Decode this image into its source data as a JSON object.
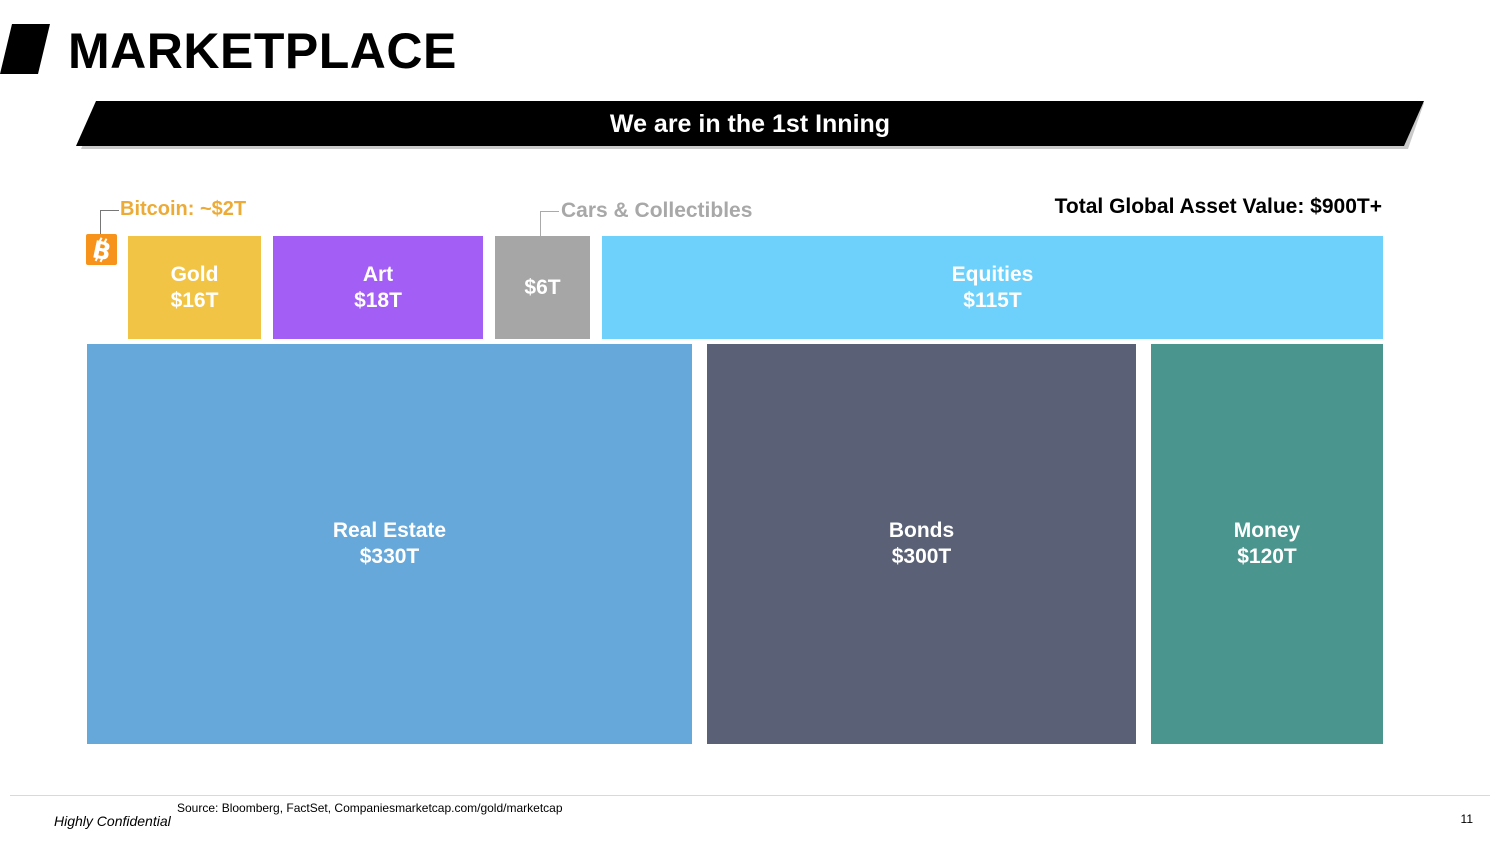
{
  "slide": {
    "title": "MARKETPLACE",
    "banner": "We are in the 1st Inning",
    "total_label": "Total Global Asset Value: $900T+",
    "source": "Source: Bloomberg, FactSet, Companiesmarketcap.com/gold/marketcap",
    "confidential": "Highly Confidential",
    "page_number": "11"
  },
  "callouts": {
    "bitcoin": "Bitcoin: ~$2T",
    "cars": "Cars & Collectibles"
  },
  "colors": {
    "bitcoin": "#f7931a",
    "gold": "#f2c446",
    "art": "#a25ef5",
    "cars": "#a6a6a6",
    "equities": "#6dd1fb",
    "real_estate": "#67a8da",
    "bonds": "#5a6176",
    "money": "#4a958d"
  },
  "chart_data": {
    "type": "treemap",
    "title": "Total Global Asset Value: $900T+",
    "units": "T (USD trillions)",
    "items": [
      {
        "name": "Bitcoin",
        "label": "",
        "value_label": "",
        "value": 2,
        "color": "#f7931a",
        "icon": "bitcoin-icon"
      },
      {
        "name": "Gold",
        "label": "Gold",
        "value_label": "$16T",
        "value": 16,
        "color": "#f2c446"
      },
      {
        "name": "Art",
        "label": "Art",
        "value_label": "$18T",
        "value": 18,
        "color": "#a25ef5"
      },
      {
        "name": "Cars & Collectibles",
        "label": "",
        "value_label": "$6T",
        "value": 6,
        "color": "#a6a6a6"
      },
      {
        "name": "Equities",
        "label": "Equities",
        "value_label": "$115T",
        "value": 115,
        "color": "#6dd1fb"
      },
      {
        "name": "Real Estate",
        "label": "Real Estate",
        "value_label": "$330T",
        "value": 330,
        "color": "#67a8da"
      },
      {
        "name": "Bonds",
        "label": "Bonds",
        "value_label": "$300T",
        "value": 300,
        "color": "#5a6176"
      },
      {
        "name": "Money",
        "label": "Money",
        "value_label": "$120T",
        "value": 120,
        "color": "#4a958d"
      }
    ]
  }
}
